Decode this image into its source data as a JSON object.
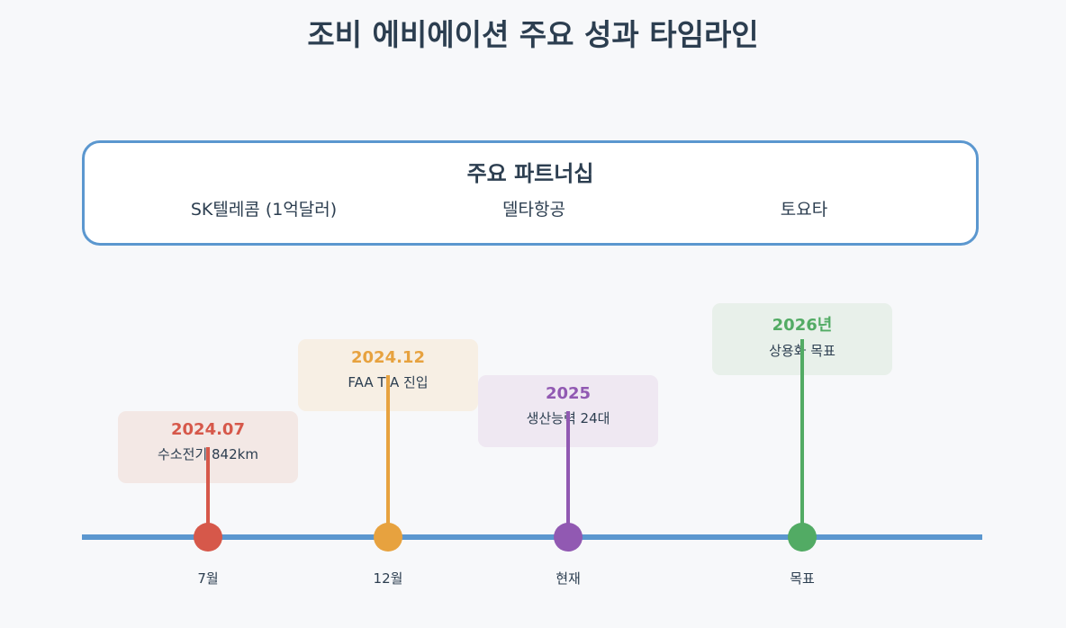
{
  "title": "조비 에비에이션 주요 성과 타임라인",
  "partners": {
    "title": "주요 파트너십",
    "items": [
      "SK텔레콤 (1억달러)",
      "델타항공",
      "토요타"
    ]
  },
  "timeline": [
    {
      "date": "2024.07",
      "desc": "수소전기 842km",
      "label": "7월",
      "color": "#d6584a",
      "bg": "#f3e8e5"
    },
    {
      "date": "2024.12",
      "desc": "FAA TIA 진입",
      "label": "12월",
      "color": "#e7a23f",
      "bg": "#f7efe4"
    },
    {
      "date": "2025",
      "desc": "생산능력 24대",
      "label": "현재",
      "color": "#9159b2",
      "bg": "#efe8f2"
    },
    {
      "date": "2026년",
      "desc": "상용화 목표",
      "label": "목표",
      "color": "#52ab64",
      "bg": "#e8f0ea"
    }
  ],
  "colors": {
    "axis": "#5b97cf",
    "text": "#2c3e50"
  }
}
